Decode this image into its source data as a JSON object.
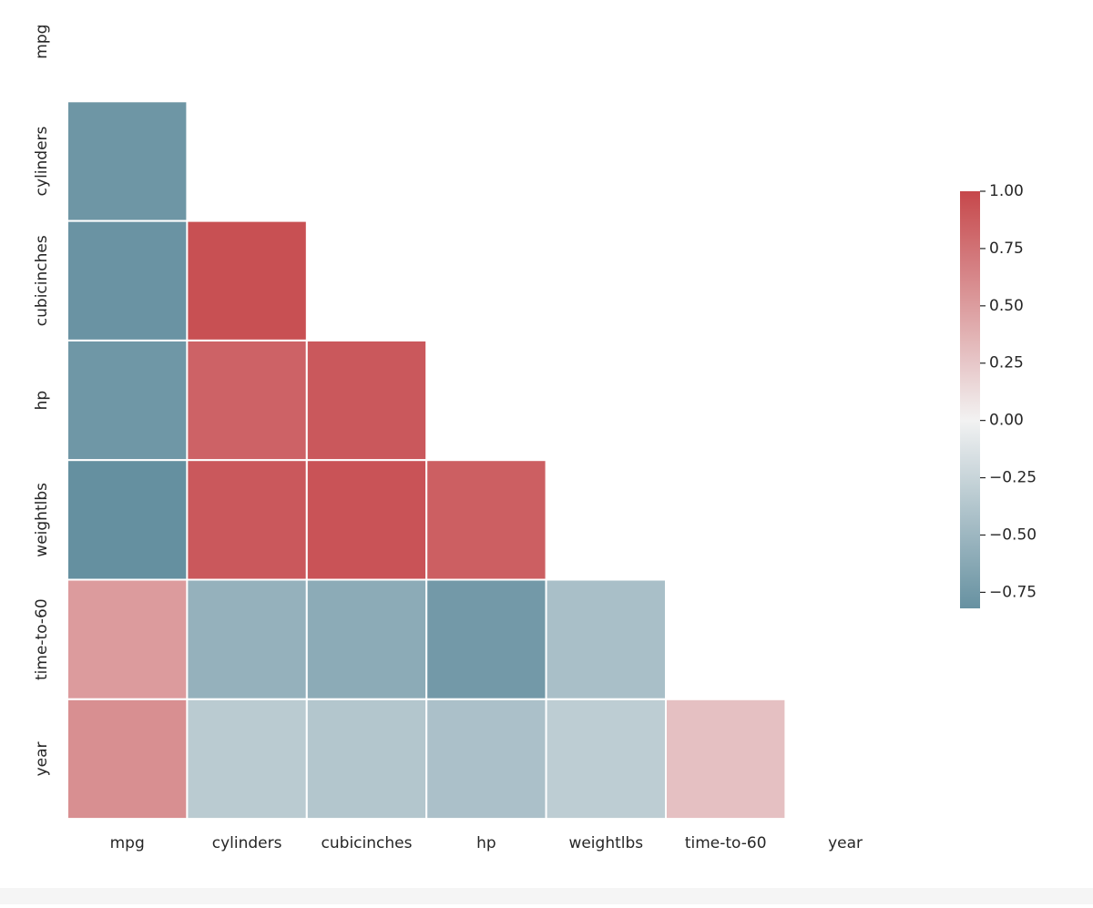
{
  "chart_data": {
    "type": "heatmap",
    "x_categories": [
      "mpg",
      "cylinders",
      "cubicinches",
      "hp",
      "weightlbs",
      "time-to-60",
      "year"
    ],
    "y_categories": [
      "mpg",
      "cylinders",
      "cubicinches",
      "hp",
      "weightlbs",
      "time-to-60",
      "year"
    ],
    "values": [
      [
        null,
        null,
        null,
        null,
        null,
        null,
        null
      ],
      [
        -0.78,
        null,
        null,
        null,
        null,
        null,
        null
      ],
      [
        -0.8,
        0.95,
        null,
        null,
        null,
        null,
        null
      ],
      [
        -0.77,
        0.84,
        0.9,
        null,
        null,
        null,
        null
      ],
      [
        -0.83,
        0.9,
        0.93,
        0.86,
        null,
        null,
        null
      ],
      [
        0.51,
        -0.55,
        -0.6,
        -0.75,
        -0.43,
        null,
        null
      ],
      [
        0.58,
        -0.33,
        -0.37,
        -0.42,
        -0.31,
        0.29,
        null
      ]
    ],
    "colors": [
      "#6791a1",
      "#f2f2f2",
      "#c6474b"
    ],
    "clim": [
      -0.82,
      1.0
    ],
    "cticks": [
      {
        "value": -0.75,
        "label": "−0.75"
      },
      {
        "value": -0.5,
        "label": "−0.50"
      },
      {
        "value": -0.25,
        "label": "−0.25"
      },
      {
        "value": 0,
        "label": "0.00"
      },
      {
        "value": 0.25,
        "label": "0.25"
      },
      {
        "value": 0.5,
        "label": "0.50"
      },
      {
        "value": 0.75,
        "label": "0.75"
      },
      {
        "value": 1,
        "label": "1.00"
      }
    ]
  }
}
